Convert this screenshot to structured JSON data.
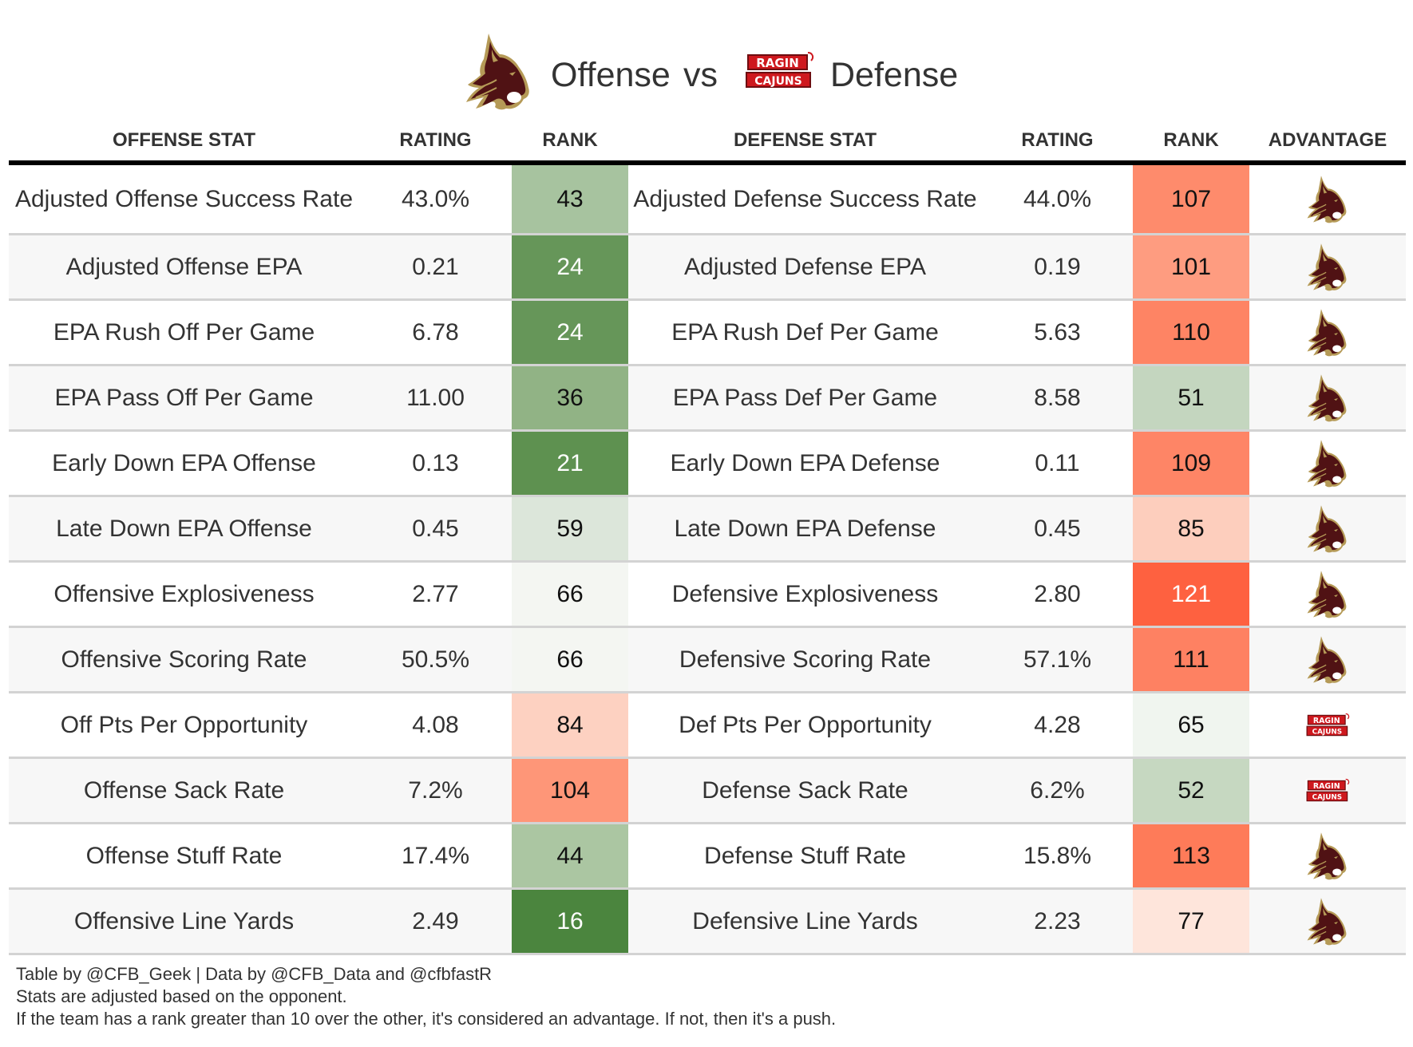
{
  "title": {
    "left_logo": "texas-state-bobcats-logo",
    "left_text": "Offense",
    "vs_text": "vs",
    "right_logo": "ragin-cajuns-logo",
    "right_text": "Defense"
  },
  "colors": {
    "bobcat_maroon": "#501214",
    "bobcat_gold": "#b59a57",
    "cajuns_red": "#ce181e",
    "header_rule": "#000000",
    "row_divider": "#d3d3d3",
    "alt_row_bg": "#f7f7f7"
  },
  "headers": {
    "offense_stat": "OFFENSE STAT",
    "offense_rating": "RATING",
    "offense_rank": "RANK",
    "defense_stat": "DEFENSE STAT",
    "defense_rating": "RATING",
    "defense_rank": "RANK",
    "advantage": "ADVANTAGE"
  },
  "rows": [
    {
      "offense_stat": "Adjusted Offense Success Rate",
      "offense_rating": "43.0%",
      "offense_rank": "43",
      "offense_rank_color": "#a7c39f",
      "defense_stat": "Adjusted Defense Success Rate",
      "defense_rating": "44.0%",
      "defense_rank": "107",
      "defense_rank_color": "#fe8b6c",
      "advantage": "bobcats"
    },
    {
      "offense_stat": "Adjusted Offense EPA",
      "offense_rating": "0.21",
      "offense_rank": "24",
      "offense_rank_color": "#669659",
      "defense_stat": "Adjusted Defense EPA",
      "defense_rating": "0.19",
      "defense_rank": "101",
      "defense_rank_color": "#fe9c80",
      "advantage": "bobcats"
    },
    {
      "offense_stat": "EPA Rush Off Per Game",
      "offense_rating": "6.78",
      "offense_rank": "24",
      "offense_rank_color": "#669659",
      "defense_stat": "EPA Rush Def Per Game",
      "defense_rating": "5.63",
      "defense_rank": "110",
      "defense_rank_color": "#fe8464",
      "advantage": "bobcats"
    },
    {
      "offense_stat": "EPA Pass Off Per Game",
      "offense_rating": "11.00",
      "offense_rank": "36",
      "offense_rank_color": "#91b385",
      "defense_stat": "EPA Pass Def Per Game",
      "defense_rating": "8.58",
      "defense_rank": "51",
      "defense_rank_color": "#c4d6bf",
      "advantage": "bobcats"
    },
    {
      "offense_stat": "Early Down EPA Offense",
      "offense_rating": "0.13",
      "offense_rank": "21",
      "offense_rank_color": "#5e9150",
      "defense_stat": "Early Down EPA Defense",
      "defense_rating": "0.11",
      "defense_rank": "109",
      "defense_rank_color": "#fe8566",
      "advantage": "bobcats"
    },
    {
      "offense_stat": "Late Down EPA Offense",
      "offense_rating": "0.45",
      "offense_rank": "59",
      "offense_rank_color": "#dce6da",
      "defense_stat": "Late Down EPA Defense",
      "defense_rating": "0.45",
      "defense_rank": "85",
      "defense_rank_color": "#fdcebd",
      "advantage": "bobcats"
    },
    {
      "offense_stat": "Offensive Explosiveness",
      "offense_rating": "2.77",
      "offense_rank": "66",
      "offense_rank_color": "#f4f6f2",
      "defense_stat": "Defensive Explosiveness",
      "defense_rating": "2.80",
      "defense_rank": "121",
      "defense_rank_color": "#fe6140",
      "advantage": "bobcats"
    },
    {
      "offense_stat": "Offensive Scoring Rate",
      "offense_rating": "50.5%",
      "offense_rank": "66",
      "offense_rank_color": "#f4f6f2",
      "defense_stat": "Defensive Scoring Rate",
      "defense_rating": "57.1%",
      "defense_rank": "111",
      "defense_rank_color": "#fe8162",
      "advantage": "bobcats"
    },
    {
      "offense_stat": "Off Pts Per Opportunity",
      "offense_rating": "4.08",
      "offense_rank": "84",
      "offense_rank_color": "#fdd1c1",
      "defense_stat": "Def Pts Per Opportunity",
      "defense_rating": "4.28",
      "defense_rank": "65",
      "defense_rank_color": "#f0f5ef",
      "advantage": "cajuns"
    },
    {
      "offense_stat": "Offense Sack Rate",
      "offense_rating": "7.2%",
      "offense_rank": "104",
      "offense_rank_color": "#fe9678",
      "defense_stat": "Defense Sack Rate",
      "defense_rating": "6.2%",
      "defense_rank": "52",
      "defense_rank_color": "#c6d8c1",
      "advantage": "cajuns"
    },
    {
      "offense_stat": "Offense Stuff Rate",
      "offense_rating": "17.4%",
      "offense_rank": "44",
      "offense_rank_color": "#abc6a2",
      "defense_stat": "Defense Stuff Rate",
      "defense_rating": "15.8%",
      "defense_rank": "113",
      "defense_rank_color": "#fe7b59",
      "advantage": "bobcats"
    },
    {
      "offense_stat": "Offensive Line Yards",
      "offense_rating": "2.49",
      "offense_rank": "16",
      "offense_rank_color": "#4b853e",
      "defense_stat": "Defensive Line Yards",
      "defense_rating": "2.23",
      "defense_rank": "77",
      "defense_rank_color": "#fee5db",
      "advantage": "bobcats"
    }
  ],
  "footer": {
    "line1": "Table by @CFB_Geek | Data by @CFB_Data and @cfbfastR",
    "line2": "Stats are adjusted based on the opponent.",
    "line3": "If the team has a rank greater than 10 over the other, it's considered an advantage. If not, then it's a push."
  }
}
